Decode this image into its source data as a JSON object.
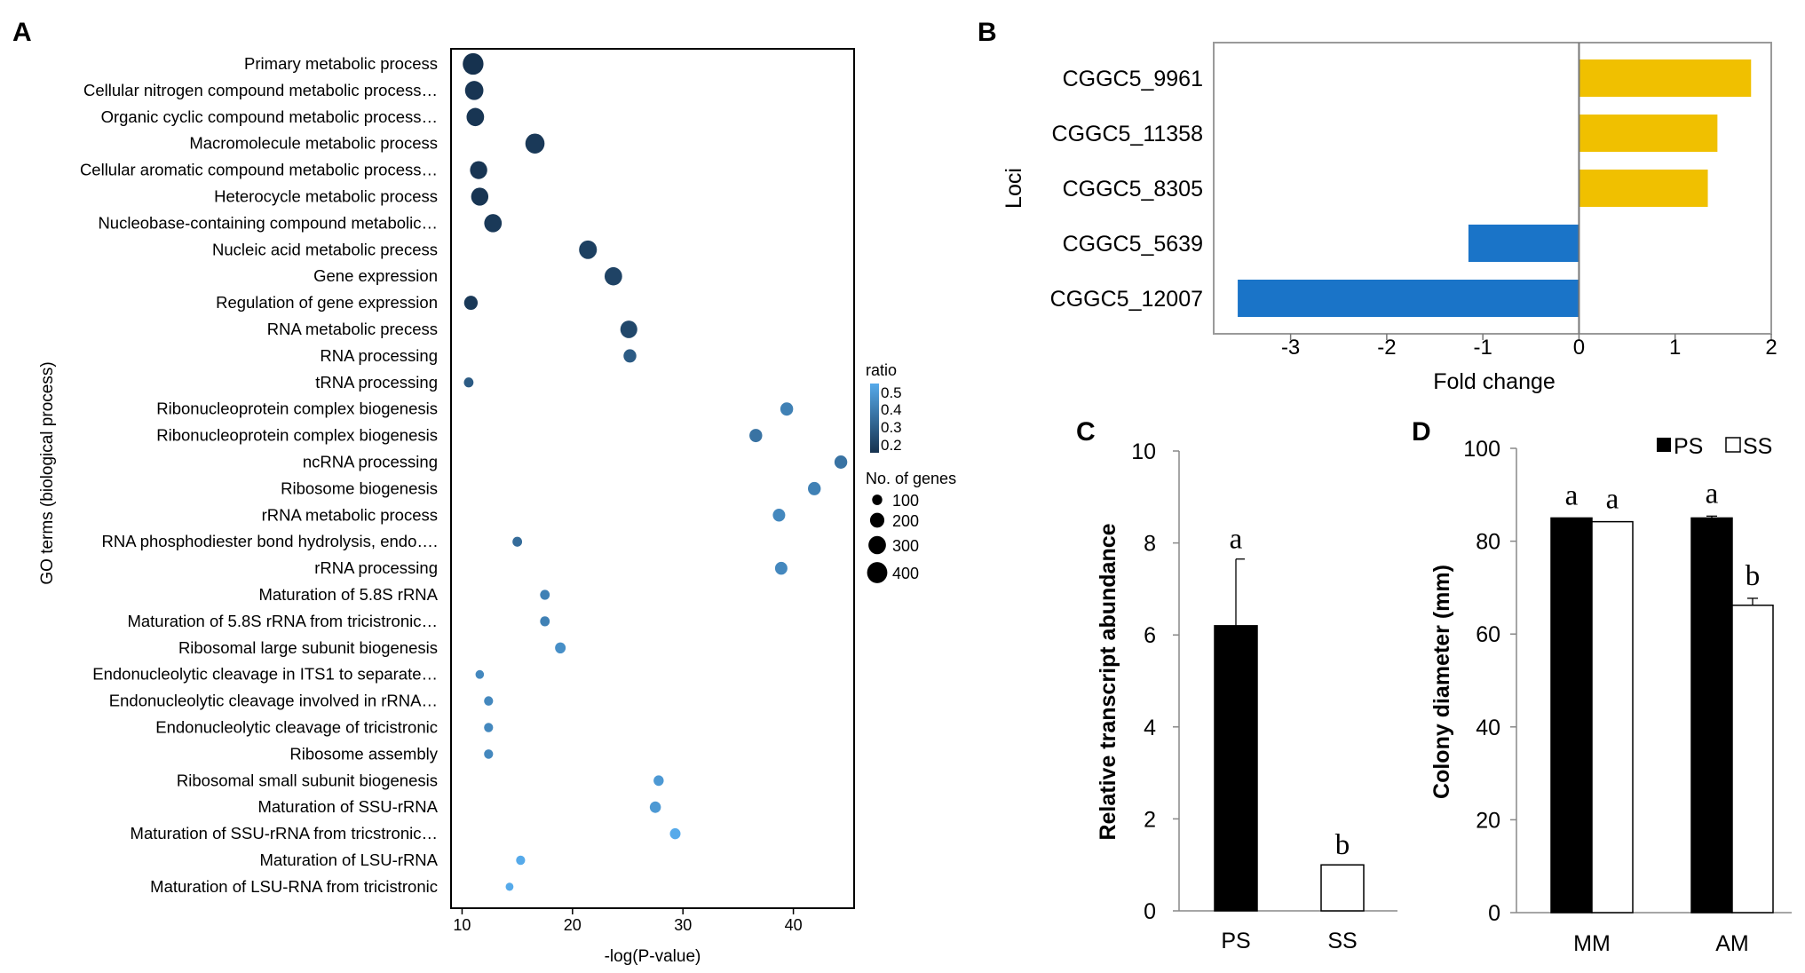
{
  "panel_labels": {
    "a": "A",
    "b": "B",
    "c": "C",
    "d": "D"
  },
  "colors": {
    "dot_dark": "#16324f",
    "dot_light": "#56aaea",
    "gold": "#f0c000",
    "blue": "#1a74c8",
    "black": "#000000"
  },
  "legend_a": {
    "ratio_title": "ratio",
    "ratio_ticks": [
      "0.5",
      "0.4",
      "0.3",
      "0.2"
    ],
    "size_title": "No. of genes",
    "size_items": [
      {
        "label": "100",
        "value": 100
      },
      {
        "label": "200",
        "value": 200
      },
      {
        "label": "300",
        "value": 300
      },
      {
        "label": "400",
        "value": 400
      }
    ]
  },
  "chart_data": [
    {
      "panel": "A",
      "type": "scatter",
      "title": "",
      "xlabel": "-log(P-value)",
      "ylabel": "GO terms (biological process)",
      "xlim": [
        9,
        45.5
      ],
      "xticks": [
        10,
        20,
        30,
        40
      ],
      "grid": false,
      "terms": [
        {
          "label": "Primary metabolic process",
          "x": 11.0,
          "genes": 420,
          "ratio": 0.15
        },
        {
          "label": "Cellular nitrogen compound metabolic process…",
          "x": 11.1,
          "genes": 330,
          "ratio": 0.16
        },
        {
          "label": "Organic cyclic compound metabolic process…",
          "x": 11.2,
          "genes": 300,
          "ratio": 0.16
        },
        {
          "label": "Macromolecule metabolic process",
          "x": 16.6,
          "genes": 360,
          "ratio": 0.17
        },
        {
          "label": "Cellular aromatic compound metabolic process…",
          "x": 11.5,
          "genes": 290,
          "ratio": 0.16
        },
        {
          "label": "Heterocycle metabolic process",
          "x": 11.6,
          "genes": 290,
          "ratio": 0.16
        },
        {
          "label": "Nucleobase-containing compound metabolic…",
          "x": 12.8,
          "genes": 300,
          "ratio": 0.17
        },
        {
          "label": "Nucleic acid metabolic precess",
          "x": 21.4,
          "genes": 310,
          "ratio": 0.19
        },
        {
          "label": "Gene expression",
          "x": 23.7,
          "genes": 300,
          "ratio": 0.2
        },
        {
          "label": "Regulation of gene expression",
          "x": 10.8,
          "genes": 180,
          "ratio": 0.17
        },
        {
          "label": "RNA metabolic precess",
          "x": 25.1,
          "genes": 280,
          "ratio": 0.21
        },
        {
          "label": "RNA processing",
          "x": 25.2,
          "genes": 160,
          "ratio": 0.27
        },
        {
          "label": "tRNA processing",
          "x": 10.6,
          "genes": 90,
          "ratio": 0.27
        },
        {
          "label": "Ribonucleoprotein complex biogenesis",
          "x": 39.4,
          "genes": 160,
          "ratio": 0.38
        },
        {
          "label": "Ribonucleoprotein complex biogenesis",
          "x": 36.6,
          "genes": 160,
          "ratio": 0.34
        },
        {
          "label": "ncRNA processing",
          "x": 44.3,
          "genes": 160,
          "ratio": 0.34
        },
        {
          "label": "Ribosome biogenesis",
          "x": 41.9,
          "genes": 160,
          "ratio": 0.38
        },
        {
          "label": "rRNA metabolic process",
          "x": 38.7,
          "genes": 150,
          "ratio": 0.4
        },
        {
          "label": "RNA phosphodiester bond hydrolysis, endo….",
          "x": 15.0,
          "genes": 90,
          "ratio": 0.32
        },
        {
          "label": "rRNA processing",
          "x": 38.9,
          "genes": 150,
          "ratio": 0.4
        },
        {
          "label": "Maturation of 5.8S rRNA",
          "x": 17.5,
          "genes": 90,
          "ratio": 0.38
        },
        {
          "label": "Maturation of 5.8S rRNA from tricistronic…",
          "x": 17.5,
          "genes": 90,
          "ratio": 0.38
        },
        {
          "label": "Ribosomal large subunit biogenesis",
          "x": 18.9,
          "genes": 110,
          "ratio": 0.42
        },
        {
          "label": "Endonucleolytic cleavage in ITS1 to separate…",
          "x": 11.6,
          "genes": 70,
          "ratio": 0.4
        },
        {
          "label": "Endonucleolytic cleavage involved in rRNA…",
          "x": 12.4,
          "genes": 80,
          "ratio": 0.4
        },
        {
          "label": "Endonucleolytic cleavage of tricistronic",
          "x": 12.4,
          "genes": 80,
          "ratio": 0.4
        },
        {
          "label": "Ribosome assembly",
          "x": 12.4,
          "genes": 80,
          "ratio": 0.4
        },
        {
          "label": "Ribosomal small subunit biogenesis",
          "x": 27.8,
          "genes": 100,
          "ratio": 0.45
        },
        {
          "label": "Maturation of SSU-rRNA",
          "x": 27.5,
          "genes": 120,
          "ratio": 0.45
        },
        {
          "label": "Maturation of SSU-rRNA from tricstronic…",
          "x": 29.3,
          "genes": 110,
          "ratio": 0.5
        },
        {
          "label": "Maturation of LSU-rRNA",
          "x": 15.3,
          "genes": 80,
          "ratio": 0.5
        },
        {
          "label": "Maturation of LSU-RNA from tricistronic",
          "x": 14.3,
          "genes": 60,
          "ratio": 0.5
        }
      ]
    },
    {
      "panel": "B",
      "type": "bar",
      "orientation": "horizontal",
      "title": "",
      "xlabel": "Fold change",
      "ylabel": "Loci",
      "xlim": [
        -3.8,
        2.0
      ],
      "xticks": [
        -3,
        -2,
        -1,
        0,
        1,
        2
      ],
      "categories": [
        "CGGC5_9961",
        "CGGC5_11358",
        "CGGC5_8305",
        "CGGC5_5639",
        "CGGC5_12007"
      ],
      "values": [
        1.79,
        1.44,
        1.34,
        -1.15,
        -3.55
      ]
    },
    {
      "panel": "C",
      "type": "bar",
      "title": "",
      "xlabel": "",
      "ylabel": "Relative transcript abundance",
      "ylim": [
        0,
        10
      ],
      "yticks": [
        0,
        2,
        4,
        6,
        8,
        10
      ],
      "categories": [
        "PS",
        "SS"
      ],
      "values": [
        6.2,
        1.0
      ],
      "errors": [
        1.45,
        0
      ],
      "letters": [
        "a",
        "b"
      ]
    },
    {
      "panel": "D",
      "type": "bar",
      "title": "",
      "xlabel": "",
      "ylabel": "Colony diameter (mm)",
      "ylim": [
        0,
        100
      ],
      "yticks": [
        0,
        20,
        40,
        60,
        80,
        100
      ],
      "categories": [
        "MM",
        "AM"
      ],
      "series": [
        {
          "name": "PS",
          "values": [
            85,
            85
          ],
          "errors": [
            0,
            0.4
          ],
          "letters": [
            "a",
            "a"
          ]
        },
        {
          "name": "SS",
          "values": [
            84.2,
            66.2
          ],
          "errors": [
            0,
            1.5
          ],
          "letters": [
            "a",
            "b"
          ]
        }
      ],
      "legend": "top-right"
    }
  ]
}
